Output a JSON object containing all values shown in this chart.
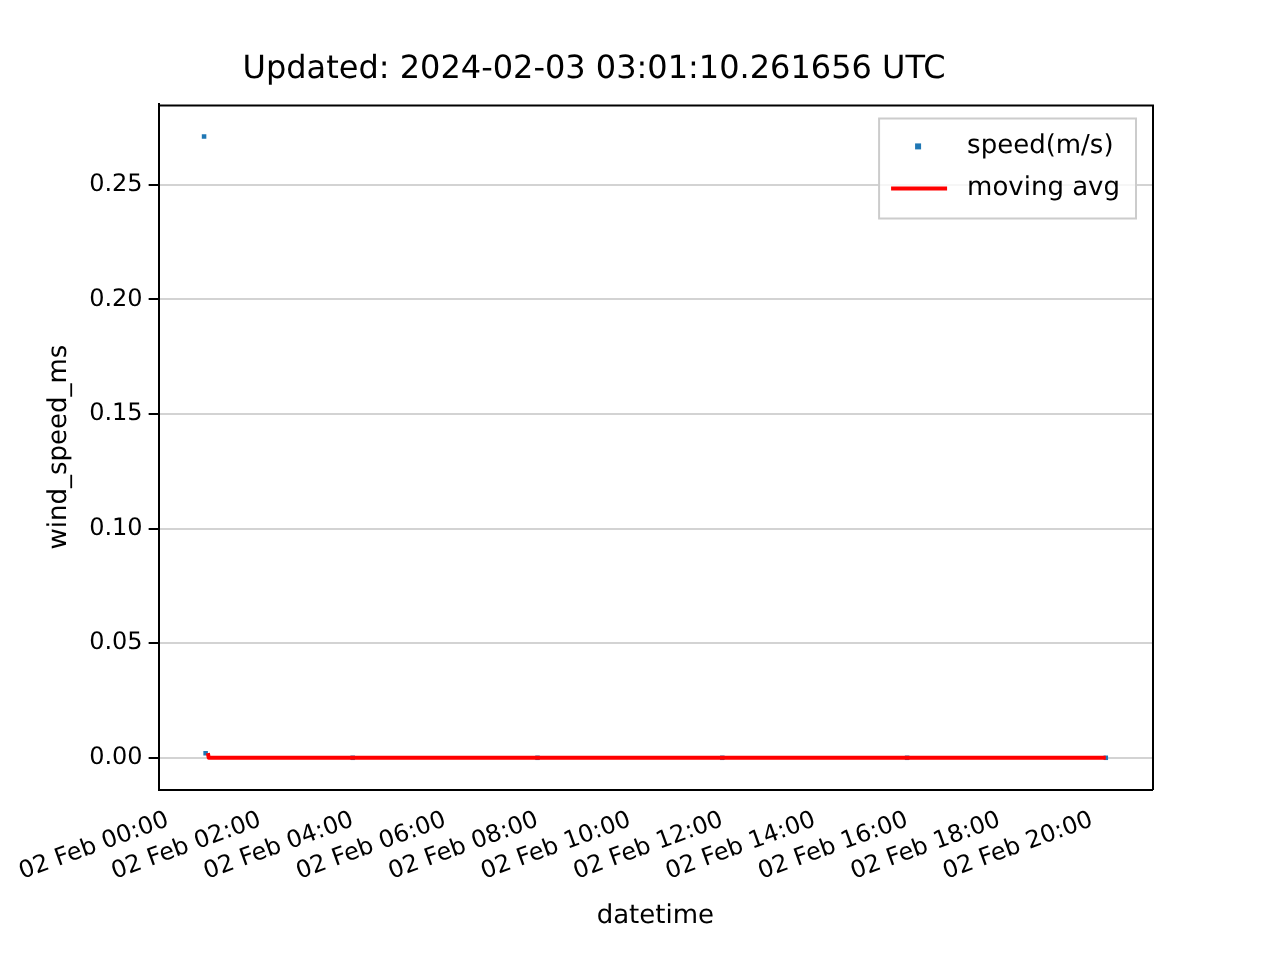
{
  "chart_data": {
    "type": "scatter",
    "title": "Updated: 2024-02-03 03:01:10.261656 UTC",
    "xlabel": "datetime",
    "ylabel": "wind_speed_ms",
    "xlim": [
      "2024-02-01T23:48",
      "2024-02-02T21:18"
    ],
    "xticks": [
      {
        "value": "2024-02-02T00:00",
        "label": "02 Feb 00:00"
      },
      {
        "value": "2024-02-02T02:00",
        "label": "02 Feb 02:00"
      },
      {
        "value": "2024-02-02T04:00",
        "label": "02 Feb 04:00"
      },
      {
        "value": "2024-02-02T06:00",
        "label": "02 Feb 06:00"
      },
      {
        "value": "2024-02-02T08:00",
        "label": "02 Feb 08:00"
      },
      {
        "value": "2024-02-02T10:00",
        "label": "02 Feb 10:00"
      },
      {
        "value": "2024-02-02T12:00",
        "label": "02 Feb 12:00"
      },
      {
        "value": "2024-02-02T14:00",
        "label": "02 Feb 14:00"
      },
      {
        "value": "2024-02-02T16:00",
        "label": "02 Feb 16:00"
      },
      {
        "value": "2024-02-02T18:00",
        "label": "02 Feb 18:00"
      },
      {
        "value": "2024-02-02T20:00",
        "label": "02 Feb 20:00"
      }
    ],
    "ylim": [
      -0.014,
      0.285
    ],
    "yticks": [
      {
        "value": 0,
        "label": "0.00"
      },
      {
        "value": 0.05,
        "label": "0.05"
      },
      {
        "value": 0.1,
        "label": "0.10"
      },
      {
        "value": 0.15,
        "label": "0.15"
      },
      {
        "value": 0.2,
        "label": "0.20"
      },
      {
        "value": 0.25,
        "label": "0.25"
      }
    ],
    "grid": "y",
    "legend": "top right",
    "series": [
      {
        "name": "speed(m/s)",
        "marker": "square",
        "color": "#1f77b4",
        "x": [
          "2024-02-02T00:47",
          "2024-02-02T00:49",
          "2024-02-02T04:00",
          "2024-02-02T08:00",
          "2024-02-02T12:00",
          "2024-02-02T16:00",
          "2024-02-02T20:18"
        ],
        "values": [
          0.271,
          0.002,
          0,
          0,
          0,
          0,
          0
        ]
      },
      {
        "name": "moving avg",
        "type": "line",
        "marker": "none",
        "color": "#ff0000",
        "x": [
          "2024-02-02T00:52",
          "2024-02-02T00:53",
          "2024-02-02T20:18"
        ],
        "values": [
          0.002,
          0,
          0
        ]
      }
    ]
  }
}
